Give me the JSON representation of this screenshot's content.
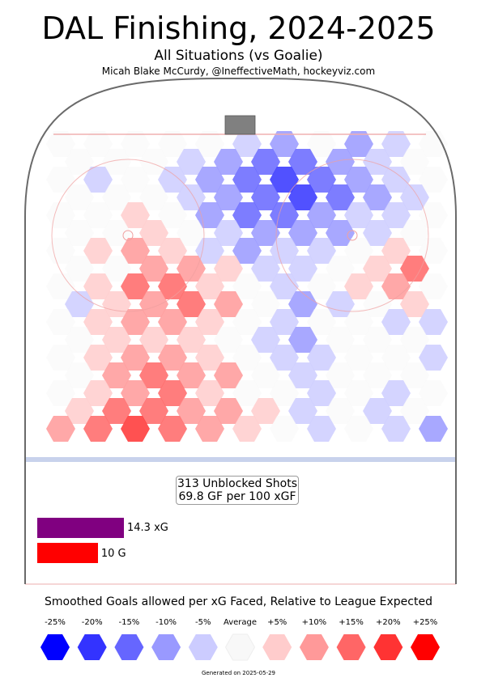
{
  "chart_data": {
    "type": "heatmap",
    "title": "DAL Finishing, 2024-2025",
    "subtitle": "All Situations (vs Goalie)",
    "byline": "Micah Blake McCurdy, @IneffectiveMath, hockeyviz.com",
    "summary": {
      "shots_line": "313 Unblocked Shots",
      "rate_line": "69.8 GF per 100 xGF",
      "xg_value": 14.3,
      "xg_label": "14.3 xG",
      "goals_value": 10,
      "goals_label": "10 G"
    },
    "colors": {
      "xg_bar": "#800080",
      "goals_bar": "#ff0000"
    },
    "legend": {
      "title": "Smoothed Goals allowed per xG Faced, Relative to League Expected",
      "labels": [
        "-25%",
        "-20%",
        "-15%",
        "-10%",
        "-5%",
        "Average",
        "+5%",
        "+10%",
        "+15%",
        "+20%",
        "+25%"
      ],
      "colors": [
        "#0000ff",
        "#3333ff",
        "#6666ff",
        "#9999ff",
        "#ccccff",
        "#f8f8f8",
        "#ffcccc",
        "#ff9999",
        "#ff6666",
        "#ff3333",
        "#ff0000"
      ]
    },
    "generated": "Generated on 2025-05-29"
  }
}
